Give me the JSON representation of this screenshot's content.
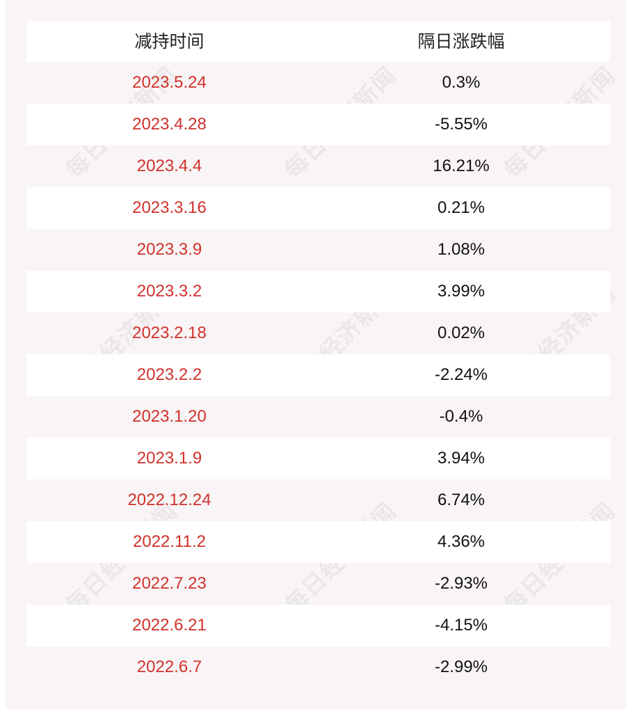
{
  "table": {
    "headers": [
      "减持时间",
      "隔日涨跌幅"
    ],
    "rows": [
      {
        "date": "2023.5.24",
        "change": "0.3%"
      },
      {
        "date": "2023.4.28",
        "change": "-5.55%"
      },
      {
        "date": "2023.4.4",
        "change": "16.21%"
      },
      {
        "date": "2023.3.16",
        "change": "0.21%"
      },
      {
        "date": "2023.3.9",
        "change": "1.08%"
      },
      {
        "date": "2023.3.2",
        "change": "3.99%"
      },
      {
        "date": "2023.2.18",
        "change": "0.02%"
      },
      {
        "date": "2023.2.2",
        "change": "-2.24%"
      },
      {
        "date": "2023.1.20",
        "change": "-0.4%"
      },
      {
        "date": "2023.1.9",
        "change": "3.94%"
      },
      {
        "date": "2022.12.24",
        "change": "6.74%"
      },
      {
        "date": "2022.11.2",
        "change": "4.36%"
      },
      {
        "date": "2022.7.23",
        "change": "-2.93%"
      },
      {
        "date": "2022.6.21",
        "change": "-4.15%"
      },
      {
        "date": "2022.6.7",
        "change": "-2.99%"
      }
    ]
  },
  "watermark": {
    "text": "每日经济新闻"
  },
  "colors": {
    "date_text": "#d0312b",
    "value_text": "#111111",
    "background": "#f9f4f5"
  }
}
